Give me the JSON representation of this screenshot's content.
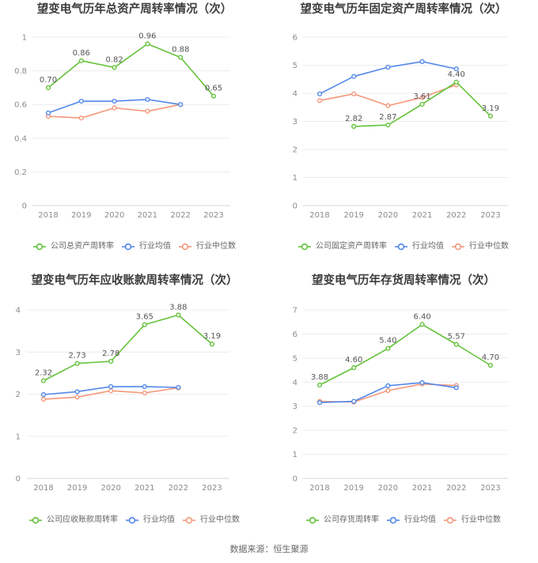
{
  "chart_data": [
    {
      "type": "line",
      "title": "望变电气历年总资产周转率情况（次）",
      "categories": [
        "2018",
        "2019",
        "2020",
        "2021",
        "2022",
        "2023"
      ],
      "ylim": [
        0,
        1
      ],
      "yticks": [
        0,
        0.2,
        0.4,
        0.6,
        0.8,
        1
      ],
      "grid": true,
      "legend": "bottom",
      "series": [
        {
          "name": "公司总资产周转率",
          "color": "#64c23a",
          "labeled": true,
          "values": [
            0.7,
            0.86,
            0.82,
            0.96,
            0.88,
            0.65
          ]
        },
        {
          "name": "行业均值",
          "color": "#5287ea",
          "labeled": false,
          "values": [
            0.55,
            0.62,
            0.62,
            0.63,
            0.6,
            null
          ]
        },
        {
          "name": "行业中位数",
          "color": "#f4987a",
          "labeled": false,
          "values": [
            0.53,
            0.52,
            0.58,
            0.56,
            0.6,
            null
          ]
        }
      ]
    },
    {
      "type": "line",
      "title": "望变电气历年固定资产周转率情况（次）",
      "categories": [
        "2018",
        "2019",
        "2020",
        "2021",
        "2022",
        "2023"
      ],
      "ylim": [
        0,
        6
      ],
      "yticks": [
        0,
        1,
        2,
        3,
        4,
        5,
        6
      ],
      "grid": true,
      "legend": "bottom",
      "series": [
        {
          "name": "公司固定资产周转率",
          "color": "#64c23a",
          "labeled": true,
          "values": [
            null,
            2.82,
            2.87,
            3.61,
            4.4,
            3.19
          ]
        },
        {
          "name": "行业均值",
          "color": "#5287ea",
          "labeled": false,
          "values": [
            3.98,
            4.6,
            4.93,
            5.13,
            4.87,
            null
          ]
        },
        {
          "name": "行业中位数",
          "color": "#f4987a",
          "labeled": false,
          "values": [
            3.74,
            3.98,
            3.56,
            3.85,
            4.3,
            null
          ]
        }
      ]
    },
    {
      "type": "line",
      "title": "望变电气历年应收账款周转率情况（次）",
      "categories": [
        "2018",
        "2019",
        "2020",
        "2021",
        "2022",
        "2023"
      ],
      "ylim": [
        0,
        4
      ],
      "yticks": [
        0,
        1,
        2,
        3,
        4
      ],
      "grid": true,
      "legend": "bottom",
      "series": [
        {
          "name": "公司应收账款周转率",
          "color": "#64c23a",
          "labeled": true,
          "values": [
            2.32,
            2.73,
            2.78,
            3.65,
            3.88,
            3.19
          ]
        },
        {
          "name": "行业均值",
          "color": "#5287ea",
          "labeled": false,
          "values": [
            1.99,
            2.06,
            2.18,
            2.18,
            2.16,
            null
          ]
        },
        {
          "name": "行业中位数",
          "color": "#f4987a",
          "labeled": false,
          "values": [
            1.88,
            1.93,
            2.08,
            2.03,
            2.15,
            null
          ]
        }
      ]
    },
    {
      "type": "line",
      "title": "望变电气历年存货周转率情况（次）",
      "categories": [
        "2018",
        "2019",
        "2020",
        "2021",
        "2022",
        "2023"
      ],
      "ylim": [
        0,
        7
      ],
      "yticks": [
        0,
        1,
        2,
        3,
        4,
        5,
        6,
        7
      ],
      "grid": true,
      "legend": "bottom",
      "series": [
        {
          "name": "公司存货周转率",
          "color": "#64c23a",
          "labeled": true,
          "values": [
            3.88,
            4.6,
            5.4,
            6.4,
            5.57,
            4.7
          ]
        },
        {
          "name": "行业均值",
          "color": "#5287ea",
          "labeled": false,
          "values": [
            3.15,
            3.2,
            3.85,
            3.98,
            3.77,
            null
          ]
        },
        {
          "name": "行业中位数",
          "color": "#f4987a",
          "labeled": false,
          "values": [
            3.2,
            3.17,
            3.65,
            3.92,
            3.86,
            null
          ]
        }
      ]
    }
  ],
  "footer": {
    "source": "数据来源：恒生聚源"
  }
}
